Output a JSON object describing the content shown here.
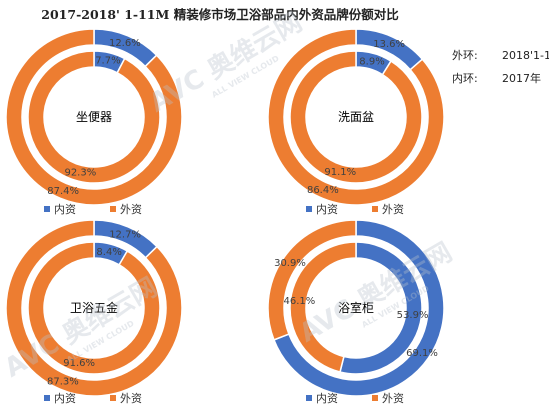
{
  "title": "2017-2018' 1-11M 精装修市场卫浴部品内外资品牌份额对比",
  "side_note": [
    {
      "key": "外环:",
      "value": "2018'1-11M"
    },
    {
      "key": "内环:",
      "value": "2017年"
    }
  ],
  "watermark": {
    "main": "AVC 奥维云网",
    "sub": "ALL VIEW CLOUD"
  },
  "colors": {
    "domestic": "#4472C4",
    "foreign": "#ED7D31"
  },
  "chart_data": [
    {
      "type": "pie",
      "title": "坐便器",
      "outer": {
        "name": "2018'1-11M",
        "values": [
          12.6,
          87.4
        ],
        "labels": [
          "12.6%",
          "87.4%"
        ]
      },
      "inner": {
        "name": "2017年",
        "values": [
          7.7,
          92.3
        ],
        "labels": [
          "7.7%",
          "92.3%"
        ]
      },
      "legend": [
        "内资",
        "外资"
      ]
    },
    {
      "type": "pie",
      "title": "洗面盆",
      "outer": {
        "name": "2018'1-11M",
        "values": [
          13.6,
          86.4
        ],
        "labels": [
          "13.6%",
          "86.4%"
        ]
      },
      "inner": {
        "name": "2017年",
        "values": [
          8.9,
          91.1
        ],
        "labels": [
          "8.9%",
          "91.1%"
        ]
      },
      "legend": [
        "内资",
        "外资"
      ]
    },
    {
      "type": "pie",
      "title": "卫浴五金",
      "outer": {
        "name": "2018'1-11M",
        "values": [
          12.7,
          87.3
        ],
        "labels": [
          "12.7%",
          "87.3%"
        ]
      },
      "inner": {
        "name": "2017年",
        "values": [
          8.4,
          91.6
        ],
        "labels": [
          "8.4%",
          "91.6%"
        ]
      },
      "legend": [
        "内资",
        "外资"
      ]
    },
    {
      "type": "pie",
      "title": "浴室柜",
      "outer": {
        "name": "2018'1-11M",
        "values": [
          69.1,
          30.9
        ],
        "labels": [
          "69.1%",
          "30.9%"
        ]
      },
      "inner": {
        "name": "2017年",
        "values": [
          53.9,
          46.1
        ],
        "labels": [
          "53.9%",
          "46.1%"
        ]
      },
      "legend": [
        "内资",
        "外资"
      ]
    }
  ]
}
